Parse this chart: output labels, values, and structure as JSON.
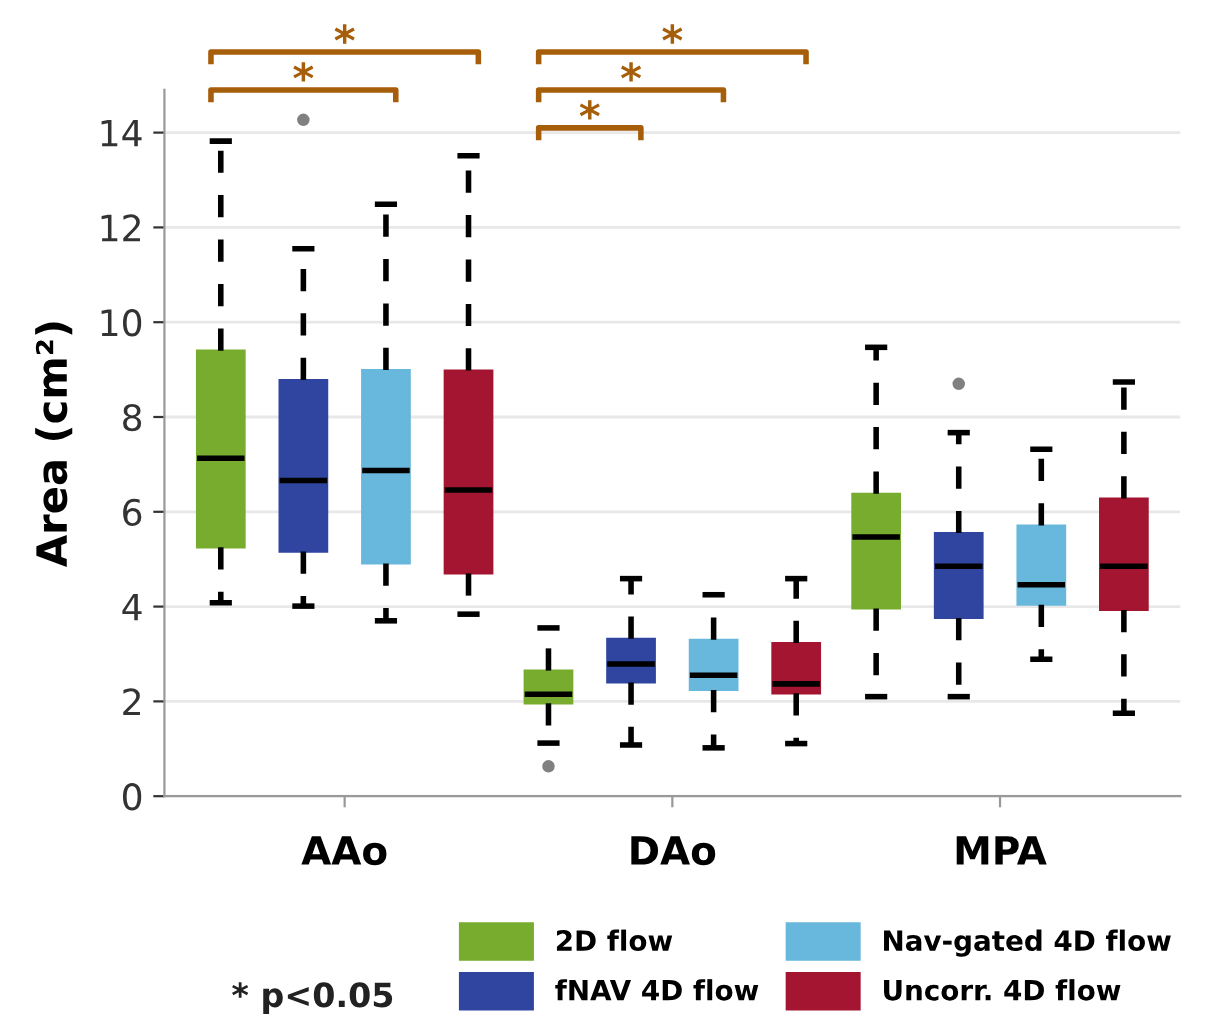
{
  "chart_data": {
    "type": "box",
    "ylabel": "Area (cm²)",
    "categories": [
      "AAo",
      "DAo",
      "MPA"
    ],
    "ylim": [
      0,
      14.9
    ],
    "yticks": [
      0,
      2,
      4,
      6,
      8,
      10,
      12,
      14
    ],
    "grid": "y",
    "legend": "bottom",
    "series": [
      {
        "name": "2D flow",
        "color": "#78ac2e",
        "boxes": [
          {
            "low": 4.08,
            "q1": 5.25,
            "median": 7.13,
            "q3": 9.4,
            "high": 13.82
          },
          {
            "low": 1.12,
            "q1": 1.96,
            "median": 2.15,
            "q3": 2.65,
            "high": 3.55,
            "outliers": [
              0.63
            ]
          },
          {
            "low": 2.1,
            "q1": 3.96,
            "median": 5.47,
            "q3": 6.38,
            "high": 9.47
          }
        ]
      },
      {
        "name": "fNAV 4D flow",
        "color": "#2f45a0",
        "boxes": [
          {
            "low": 4.01,
            "q1": 5.16,
            "median": 6.66,
            "q3": 8.78,
            "high": 11.55,
            "outliers": [
              14.27
            ]
          },
          {
            "low": 1.08,
            "q1": 2.4,
            "median": 2.79,
            "q3": 3.32,
            "high": 4.59
          },
          {
            "low": 2.1,
            "q1": 3.76,
            "median": 4.85,
            "q3": 5.55,
            "high": 7.67,
            "outliers": [
              8.7
            ]
          }
        ]
      },
      {
        "name": "Nav-gated 4D flow",
        "color": "#68b7dc",
        "boxes": [
          {
            "low": 3.7,
            "q1": 4.91,
            "median": 6.87,
            "q3": 8.99,
            "high": 12.49
          },
          {
            "low": 1.02,
            "q1": 2.24,
            "median": 2.55,
            "q3": 3.3,
            "high": 4.25
          },
          {
            "low": 2.89,
            "q1": 4.04,
            "median": 4.46,
            "q3": 5.71,
            "high": 7.32
          }
        ]
      },
      {
        "name": "Uncorr. 4D flow",
        "color": "#a31531",
        "boxes": [
          {
            "low": 3.84,
            "q1": 4.7,
            "median": 6.46,
            "q3": 8.98,
            "high": 13.51
          },
          {
            "low": 1.11,
            "q1": 2.17,
            "median": 2.37,
            "q3": 3.23,
            "high": 4.59
          },
          {
            "low": 1.75,
            "q1": 3.93,
            "median": 4.85,
            "q3": 6.28,
            "high": 8.74
          }
        ]
      }
    ],
    "annotations": [
      "*",
      "*",
      "*",
      "*",
      "*",
      "* p<0.05"
    ]
  }
}
